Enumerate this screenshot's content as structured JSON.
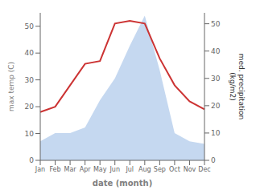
{
  "chart_data": {
    "type": "line",
    "xlabel": "date (month)",
    "ylabel": "max temp (C)",
    "y2label": "med. precipitation\n(kg/m2)",
    "categories": [
      "Jan",
      "Feb",
      "Mar",
      "Apr",
      "May",
      "Jun",
      "Jul",
      "Aug",
      "Sep",
      "Oct",
      "Nov",
      "Dec"
    ],
    "series": [
      {
        "type": "area",
        "color": "#c5d8f0",
        "axis": "y2",
        "values": [
          7,
          10,
          10,
          12,
          22,
          30,
          42,
          53,
          33,
          10,
          7,
          6
        ]
      },
      {
        "type": "line",
        "color": "#cc3333",
        "values": [
          18,
          20,
          28,
          36,
          37,
          51,
          52,
          51,
          38,
          28,
          22,
          19
        ]
      }
    ],
    "ylim": [
      0,
      55
    ],
    "yticks": [
      0,
      10,
      20,
      30,
      40,
      50
    ],
    "y2lim": [
      0,
      54
    ],
    "y2ticks": [
      0,
      10,
      20,
      30,
      40,
      50
    ],
    "grid": false
  }
}
